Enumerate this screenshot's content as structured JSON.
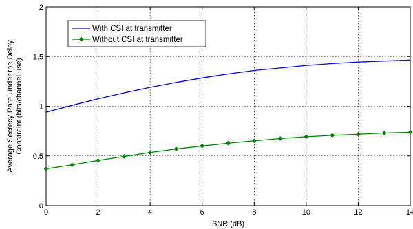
{
  "chart_data": {
    "type": "line",
    "xlabel": "SNR (dB)",
    "ylabel_lines": [
      "Average Secrecy Rate Under the Delay",
      "Constraint (bits/channel use)"
    ],
    "xlim": [
      0,
      14
    ],
    "ylim": [
      0,
      2
    ],
    "x_ticks": [
      0,
      2,
      4,
      6,
      8,
      10,
      12,
      14
    ],
    "y_ticks": [
      0,
      0.5,
      1,
      1.5,
      2
    ],
    "grid": true,
    "legend_position": "top-left",
    "series": [
      {
        "name": "With CSI at transmitter",
        "color": "#0000ff",
        "marker": "none",
        "x": [
          0,
          1,
          2,
          3,
          4,
          5,
          6,
          7,
          8,
          9,
          10,
          11,
          12,
          13,
          14
        ],
        "y": [
          0.94,
          1.01,
          1.075,
          1.135,
          1.19,
          1.24,
          1.285,
          1.325,
          1.36,
          1.385,
          1.41,
          1.43,
          1.445,
          1.455,
          1.465
        ]
      },
      {
        "name": "Without CSI at transmitter",
        "color": "#008000",
        "marker": "diamond",
        "x": [
          0,
          1,
          2,
          3,
          4,
          5,
          6,
          7,
          8,
          9,
          10,
          11,
          12,
          13,
          14
        ],
        "y": [
          0.37,
          0.41,
          0.455,
          0.495,
          0.535,
          0.57,
          0.6,
          0.628,
          0.652,
          0.675,
          0.693,
          0.707,
          0.718,
          0.73,
          0.738
        ]
      }
    ]
  }
}
